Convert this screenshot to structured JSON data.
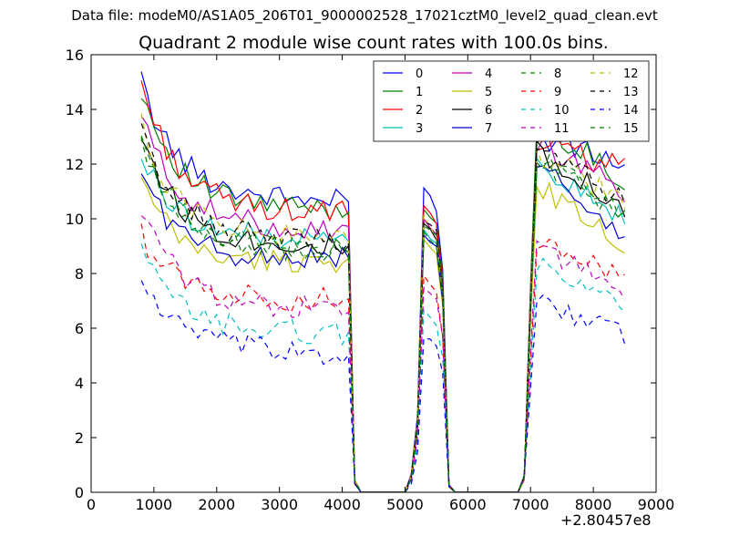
{
  "supertitle": "Data file: modeM0/AS1A05_206T01_9000002528_17021cztM0_level2_quad_clean.evt",
  "chart_data": {
    "type": "line",
    "title": "Quadrant 2 module wise count rates with 100.0s bins.",
    "xlabel": "",
    "ylabel": "",
    "x_offset_label": "+2.80457e8",
    "xlim": [
      0,
      9000
    ],
    "ylim": [
      0,
      16
    ],
    "xticks": [
      0,
      1000,
      2000,
      3000,
      4000,
      5000,
      6000,
      7000,
      8000,
      9000
    ],
    "yticks": [
      0,
      2,
      4,
      6,
      8,
      10,
      12,
      14,
      16
    ],
    "grid": false,
    "legend_position": "top-right",
    "legend_columns": 4,
    "bin_width": 100,
    "segments": [
      [
        800,
        4200
      ],
      [
        5100,
        5700
      ],
      [
        6900,
        8500
      ]
    ],
    "gap_points": [
      4300,
      4400,
      4500,
      4600,
      4700,
      4800,
      4900,
      5000,
      5800,
      5900,
      6000,
      6100,
      6200,
      6300,
      6400,
      6500,
      6600,
      6700,
      6800
    ],
    "series": [
      {
        "name": "0",
        "color": "#0000ff",
        "dash": "solid",
        "levels": [
          15.0,
          11.0,
          10.6,
          11.2,
          10.0,
          13.0,
          12.0
        ]
      },
      {
        "name": "1",
        "color": "#008000",
        "dash": "solid",
        "levels": [
          14.8,
          10.5,
          10.3,
          10.4,
          9.6,
          13.6,
          11.4
        ]
      },
      {
        "name": "2",
        "color": "#ff0000",
        "dash": "solid",
        "levels": [
          15.0,
          10.4,
          10.2,
          10.4,
          9.6,
          12.8,
          11.8
        ]
      },
      {
        "name": "3",
        "color": "#00bfbf",
        "dash": "solid",
        "levels": [
          12.3,
          9.4,
          9.2,
          9.6,
          8.8,
          12.0,
          10.0
        ]
      },
      {
        "name": "4",
        "color": "#bf00bf",
        "dash": "solid",
        "levels": [
          13.8,
          9.8,
          9.6,
          10.0,
          9.2,
          12.8,
          11.0
        ]
      },
      {
        "name": "5",
        "color": "#bfbf00",
        "dash": "solid",
        "levels": [
          11.4,
          8.2,
          8.5,
          9.2,
          8.4,
          11.2,
          9.0
        ]
      },
      {
        "name": "6",
        "color": "#000000",
        "dash": "solid",
        "levels": [
          13.2,
          9.2,
          9.0,
          9.8,
          9.0,
          12.6,
          10.4
        ]
      },
      {
        "name": "7",
        "color": "#0000cc",
        "dash": "solid",
        "levels": [
          11.8,
          8.4,
          8.6,
          9.4,
          8.6,
          12.0,
          9.4
        ]
      },
      {
        "name": "8",
        "color": "#008000",
        "dash": "dashed",
        "levels": [
          13.0,
          9.2,
          8.8,
          9.6,
          8.8,
          12.2,
          10.2
        ]
      },
      {
        "name": "9",
        "color": "#ff0000",
        "dash": "dashed",
        "levels": [
          9.4,
          7.2,
          7.0,
          7.8,
          7.0,
          9.2,
          7.8
        ]
      },
      {
        "name": "10",
        "color": "#00bfbf",
        "dash": "dashed",
        "levels": [
          8.8,
          6.0,
          5.8,
          6.6,
          6.0,
          8.2,
          6.8
        ]
      },
      {
        "name": "11",
        "color": "#bf00bf",
        "dash": "dashed",
        "levels": [
          10.4,
          7.0,
          6.6,
          7.6,
          6.8,
          9.0,
          7.4
        ]
      },
      {
        "name": "12",
        "color": "#bfbf00",
        "dash": "dashed",
        "levels": [
          13.4,
          9.6,
          9.2,
          10.0,
          9.0,
          12.4,
          10.6
        ]
      },
      {
        "name": "13",
        "color": "#000000",
        "dash": "dashed",
        "levels": [
          13.2,
          9.4,
          9.2,
          10.0,
          9.2,
          12.6,
          10.6
        ]
      },
      {
        "name": "14",
        "color": "#0000ff",
        "dash": "dashed",
        "levels": [
          7.8,
          5.4,
          5.0,
          5.6,
          5.2,
          7.0,
          5.8
        ]
      },
      {
        "name": "15",
        "color": "#008000",
        "dash": "dashed",
        "levels": [
          12.6,
          9.0,
          8.8,
          9.8,
          9.0,
          12.2,
          10.2
        ]
      }
    ]
  }
}
